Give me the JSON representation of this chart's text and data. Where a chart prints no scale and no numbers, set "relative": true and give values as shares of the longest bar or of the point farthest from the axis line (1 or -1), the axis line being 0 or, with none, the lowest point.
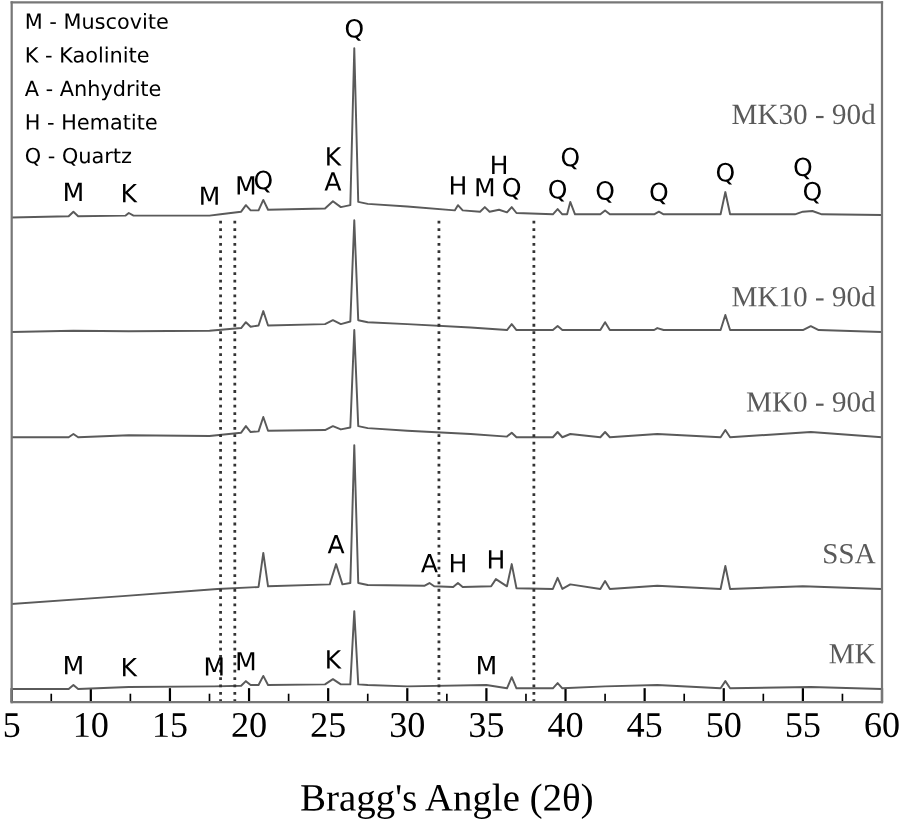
{
  "chart_data": {
    "type": "line",
    "relative": true,
    "xlabel": "Bragg's Angle (2θ)",
    "xlim": [
      5,
      60
    ],
    "xticks": [
      5,
      10,
      15,
      20,
      25,
      30,
      35,
      40,
      45,
      50,
      55,
      60
    ],
    "grid": false,
    "legend": false,
    "marker": "none",
    "line_style": "solid",
    "series": [
      {
        "name": "MK30 - 90d",
        "color": "#5a5a5a",
        "x": [
          5,
          8.6,
          8.9,
          9.2,
          12.2,
          12.4,
          12.7,
          17.5,
          18.2,
          19.5,
          19.8,
          20.1,
          20.6,
          20.9,
          21.2,
          24.8,
          25.3,
          25.8,
          26.4,
          26.65,
          26.9,
          27.5,
          30,
          33,
          33.2,
          33.5,
          34.6,
          34.9,
          35.2,
          35.8,
          36.3,
          36.6,
          36.9,
          39.2,
          39.5,
          39.8,
          40.1,
          40.3,
          40.6,
          42.2,
          42.5,
          42.8,
          45.6,
          45.9,
          46.2,
          49.8,
          50.1,
          50.4,
          54.5,
          55,
          55.6,
          56.2,
          60
        ],
        "values": [
          0.741,
          0.743,
          0.75,
          0.743,
          0.744,
          0.748,
          0.744,
          0.744,
          0.746,
          0.75,
          0.76,
          0.752,
          0.752,
          0.768,
          0.753,
          0.755,
          0.766,
          0.757,
          0.76,
          1.0,
          0.765,
          0.762,
          0.758,
          0.752,
          0.76,
          0.752,
          0.75,
          0.757,
          0.75,
          0.753,
          0.749,
          0.757,
          0.748,
          0.746,
          0.754,
          0.746,
          0.746,
          0.765,
          0.746,
          0.746,
          0.752,
          0.746,
          0.746,
          0.75,
          0.746,
          0.746,
          0.78,
          0.746,
          0.746,
          0.75,
          0.751,
          0.746,
          0.745
        ]
      },
      {
        "name": "MK10 - 90d",
        "color": "#5a5a5a",
        "x": [
          5,
          8.9,
          12.4,
          17.5,
          19.5,
          19.8,
          20.1,
          20.6,
          20.9,
          21.2,
          24.8,
          25.3,
          25.8,
          26.4,
          26.65,
          26.9,
          27.5,
          30,
          34,
          36.3,
          36.6,
          36.9,
          39.2,
          39.5,
          39.8,
          42.2,
          42.5,
          42.8,
          45.6,
          45.8,
          46.2,
          49.8,
          50.1,
          50.4,
          55,
          55.5,
          56,
          60
        ],
        "values": [
          0.566,
          0.568,
          0.567,
          0.568,
          0.572,
          0.581,
          0.574,
          0.576,
          0.598,
          0.576,
          0.578,
          0.584,
          0.578,
          0.582,
          0.737,
          0.584,
          0.581,
          0.578,
          0.573,
          0.569,
          0.578,
          0.569,
          0.569,
          0.575,
          0.569,
          0.569,
          0.581,
          0.569,
          0.569,
          0.572,
          0.569,
          0.569,
          0.592,
          0.569,
          0.569,
          0.575,
          0.569,
          0.566
        ]
      },
      {
        "name": "MK0 - 90d",
        "color": "#5a5a5a",
        "x": [
          5,
          8.6,
          8.9,
          9.2,
          12.4,
          17.5,
          19.5,
          19.8,
          20.1,
          20.6,
          20.9,
          21.2,
          24.8,
          25.3,
          25.8,
          26.4,
          26.65,
          26.9,
          27.5,
          30,
          34,
          36.3,
          36.6,
          36.9,
          39.2,
          39.5,
          39.8,
          40.3,
          42.2,
          42.5,
          42.8,
          45.8,
          49.8,
          50.1,
          50.4,
          55.5,
          60
        ],
        "values": [
          0.405,
          0.405,
          0.41,
          0.405,
          0.408,
          0.407,
          0.412,
          0.422,
          0.413,
          0.414,
          0.436,
          0.415,
          0.416,
          0.422,
          0.417,
          0.42,
          0.569,
          0.422,
          0.419,
          0.415,
          0.41,
          0.406,
          0.412,
          0.405,
          0.405,
          0.413,
          0.405,
          0.41,
          0.405,
          0.413,
          0.405,
          0.41,
          0.405,
          0.416,
          0.405,
          0.413,
          0.405
        ]
      },
      {
        "name": "SSA",
        "color": "#5a5a5a",
        "x": [
          5,
          12,
          18,
          20.6,
          20.9,
          21.2,
          25.1,
          25.5,
          25.9,
          26.4,
          26.65,
          26.9,
          27.5,
          31.1,
          31.4,
          31.7,
          32.9,
          33.2,
          33.5,
          35.3,
          35.6,
          36.3,
          36.6,
          36.9,
          39.2,
          39.5,
          39.8,
          40.3,
          42.2,
          42.5,
          42.8,
          45.8,
          49.8,
          50.1,
          50.4,
          55,
          60
        ],
        "values": [
          0.15,
          0.162,
          0.173,
          0.176,
          0.228,
          0.177,
          0.18,
          0.211,
          0.18,
          0.182,
          0.393,
          0.182,
          0.179,
          0.178,
          0.182,
          0.177,
          0.176,
          0.182,
          0.176,
          0.177,
          0.188,
          0.177,
          0.211,
          0.174,
          0.173,
          0.19,
          0.173,
          0.18,
          0.173,
          0.185,
          0.173,
          0.178,
          0.173,
          0.208,
          0.173,
          0.177,
          0.173
        ]
      },
      {
        "name": "MK",
        "color": "#5a5a5a",
        "x": [
          5,
          8.6,
          8.9,
          9.2,
          12.4,
          17.8,
          19.5,
          19.8,
          20.1,
          20.6,
          20.9,
          21.2,
          24.8,
          25.3,
          25.8,
          26.4,
          26.65,
          26.9,
          27.5,
          30,
          35,
          36.3,
          36.6,
          36.9,
          39.2,
          39.5,
          39.8,
          42.5,
          45.8,
          49.8,
          50.1,
          50.4,
          55.5,
          60
        ],
        "values": [
          0.02,
          0.02,
          0.026,
          0.02,
          0.023,
          0.024,
          0.025,
          0.032,
          0.026,
          0.026,
          0.04,
          0.026,
          0.027,
          0.035,
          0.027,
          0.027,
          0.139,
          0.027,
          0.026,
          0.024,
          0.026,
          0.021,
          0.038,
          0.021,
          0.021,
          0.029,
          0.021,
          0.024,
          0.026,
          0.021,
          0.032,
          0.021,
          0.023,
          0.02
        ]
      }
    ],
    "ref_lines": [
      {
        "axis": "x",
        "value": 18.2,
        "color": "#333333",
        "line_style": "dotted"
      },
      {
        "axis": "x",
        "value": 38,
        "color": "#333333",
        "line_style": "dotted"
      },
      {
        "axis": "x",
        "value": 19.1,
        "color": "#333333",
        "line_style": "dotted"
      },
      {
        "axis": "x",
        "value": 32,
        "color": "#333333",
        "line_style": "dotted"
      }
    ],
    "annotations": [
      "M - Muscovite",
      "K - Kaolinite",
      "A - Anhydrite",
      "H - Hematite",
      "Q - Quartz",
      {
        "text": "M",
        "x": 8.9,
        "y": 0.75
      },
      {
        "text": "K",
        "x": 12.4,
        "y": 0.748
      },
      {
        "text": "M",
        "x": 17.5,
        "y": 0.744
      },
      {
        "text": "M",
        "x": 19.8,
        "y": 0.76
      },
      {
        "text": "Q",
        "x": 20.9,
        "y": 0.768
      },
      {
        "text": "A",
        "x": 25.3,
        "y": 0.766
      },
      {
        "text": "K",
        "x": 25.3,
        "y": 0.766
      },
      {
        "text": "Q",
        "x": 26.65,
        "y": 1.0
      },
      {
        "text": "H",
        "x": 33.2,
        "y": 0.76
      },
      {
        "text": "M",
        "x": 34.9,
        "y": 0.757
      },
      {
        "text": "H",
        "x": 35.8,
        "y": 0.753
      },
      {
        "text": "Q",
        "x": 36.6,
        "y": 0.757
      },
      {
        "text": "Q",
        "x": 39.5,
        "y": 0.754
      },
      {
        "text": "Q",
        "x": 40.3,
        "y": 0.765
      },
      {
        "text": "Q",
        "x": 42.5,
        "y": 0.752
      },
      {
        "text": "Q",
        "x": 45.9,
        "y": 0.75
      },
      {
        "text": "Q",
        "x": 50.1,
        "y": 0.78
      },
      {
        "text": "Q",
        "x": 55.6,
        "y": 0.751
      },
      {
        "text": "Q",
        "x": 55,
        "y": 0.75
      },
      {
        "text": "A",
        "x": 25.5,
        "y": 0.211
      },
      {
        "text": "A",
        "x": 31.4,
        "y": 0.182
      },
      {
        "text": "H",
        "x": 33.2,
        "y": 0.182
      },
      {
        "text": "H",
        "x": 35.6,
        "y": 0.188
      },
      {
        "text": "M",
        "x": 8.9,
        "y": 0.026
      },
      {
        "text": "K",
        "x": 12.4,
        "y": 0.023
      },
      {
        "text": "M",
        "x": 17.8,
        "y": 0.024
      },
      {
        "text": "M",
        "x": 19.8,
        "y": 0.032
      },
      {
        "text": "K",
        "x": 25.3,
        "y": 0.035
      },
      {
        "text": "M",
        "x": 35,
        "y": 0.026
      }
    ]
  }
}
